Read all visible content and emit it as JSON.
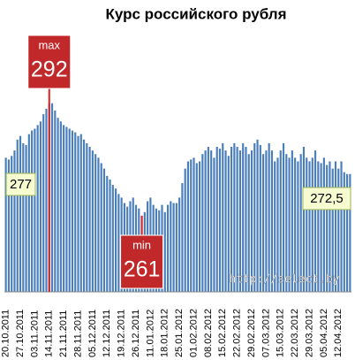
{
  "chart_data": {
    "type": "bar",
    "title": "Курс российского рубля",
    "color": "#4a7ebb",
    "ylim": [
      240,
      295
    ],
    "categories": [
      "20.10.2011",
      null,
      null,
      null,
      null,
      "27.10.2011",
      null,
      null,
      null,
      null,
      "03.11.2011",
      null,
      null,
      null,
      null,
      "14.11.2011",
      null,
      null,
      null,
      null,
      "21.11.2011",
      null,
      null,
      null,
      null,
      "28.11.2011",
      null,
      null,
      null,
      null,
      "05.12.2011",
      null,
      null,
      null,
      null,
      "12.12.2011",
      null,
      null,
      null,
      null,
      "19.12.2011",
      null,
      null,
      null,
      null,
      "26.12.2011",
      null,
      null,
      null,
      null,
      "11.01.2012",
      null,
      null,
      null,
      null,
      "18.01.2012",
      null,
      null,
      null,
      null,
      "25.01.2012",
      null,
      null,
      null,
      null,
      "01.02.2012",
      null,
      null,
      null,
      null,
      "08.02.2012",
      null,
      null,
      null,
      null,
      "15.02.2012",
      null,
      null,
      null,
      null,
      "22.02.2012",
      null,
      null,
      null,
      null,
      "29.02.2012",
      null,
      null,
      null,
      null,
      "07.03.2012",
      null,
      null,
      null,
      null,
      "15.03.2012",
      null,
      null,
      null,
      null,
      "22.03.2012",
      null,
      null,
      null,
      null,
      "29.03.2012",
      null,
      null,
      null,
      null,
      "05.04.2012",
      null,
      null,
      null,
      null,
      "12.04.2012",
      null,
      null,
      null,
      null
    ],
    "values": [
      277,
      276.5,
      277.5,
      279,
      282,
      283,
      281,
      280.5,
      283.5,
      284.5,
      285,
      286,
      287,
      289,
      290.5,
      292,
      292,
      290,
      288,
      287,
      286,
      285.5,
      285,
      284.5,
      284,
      283,
      283.5,
      282,
      281,
      280,
      279,
      278,
      277,
      275.5,
      274,
      272,
      271,
      269.5,
      268.5,
      267,
      266,
      264.5,
      263.5,
      265,
      266,
      264,
      263,
      261,
      262,
      265,
      266,
      264,
      263,
      262.5,
      264,
      262,
      264,
      265,
      264.5,
      264.5,
      266,
      270,
      274,
      276,
      276.5,
      277,
      275.5,
      276,
      278,
      279,
      280,
      279,
      277,
      280,
      279.5,
      281,
      279,
      277.5,
      280,
      281,
      280,
      279,
      281,
      280,
      278,
      279,
      281,
      282,
      280.5,
      278,
      279,
      281,
      279,
      276,
      277,
      279,
      281,
      278,
      277,
      279,
      277,
      276,
      278,
      280,
      277,
      276,
      277,
      279,
      276,
      275.5,
      277,
      275,
      276,
      274,
      276,
      274,
      276,
      273,
      272.5,
      272.5
    ],
    "annotations": [
      {
        "text": "max",
        "value": 292
      },
      {
        "text": "min",
        "value": 261
      },
      {
        "value": 277
      },
      {
        "value": 272.5,
        "label": "272,5"
      }
    ],
    "source": "http://select.by"
  }
}
